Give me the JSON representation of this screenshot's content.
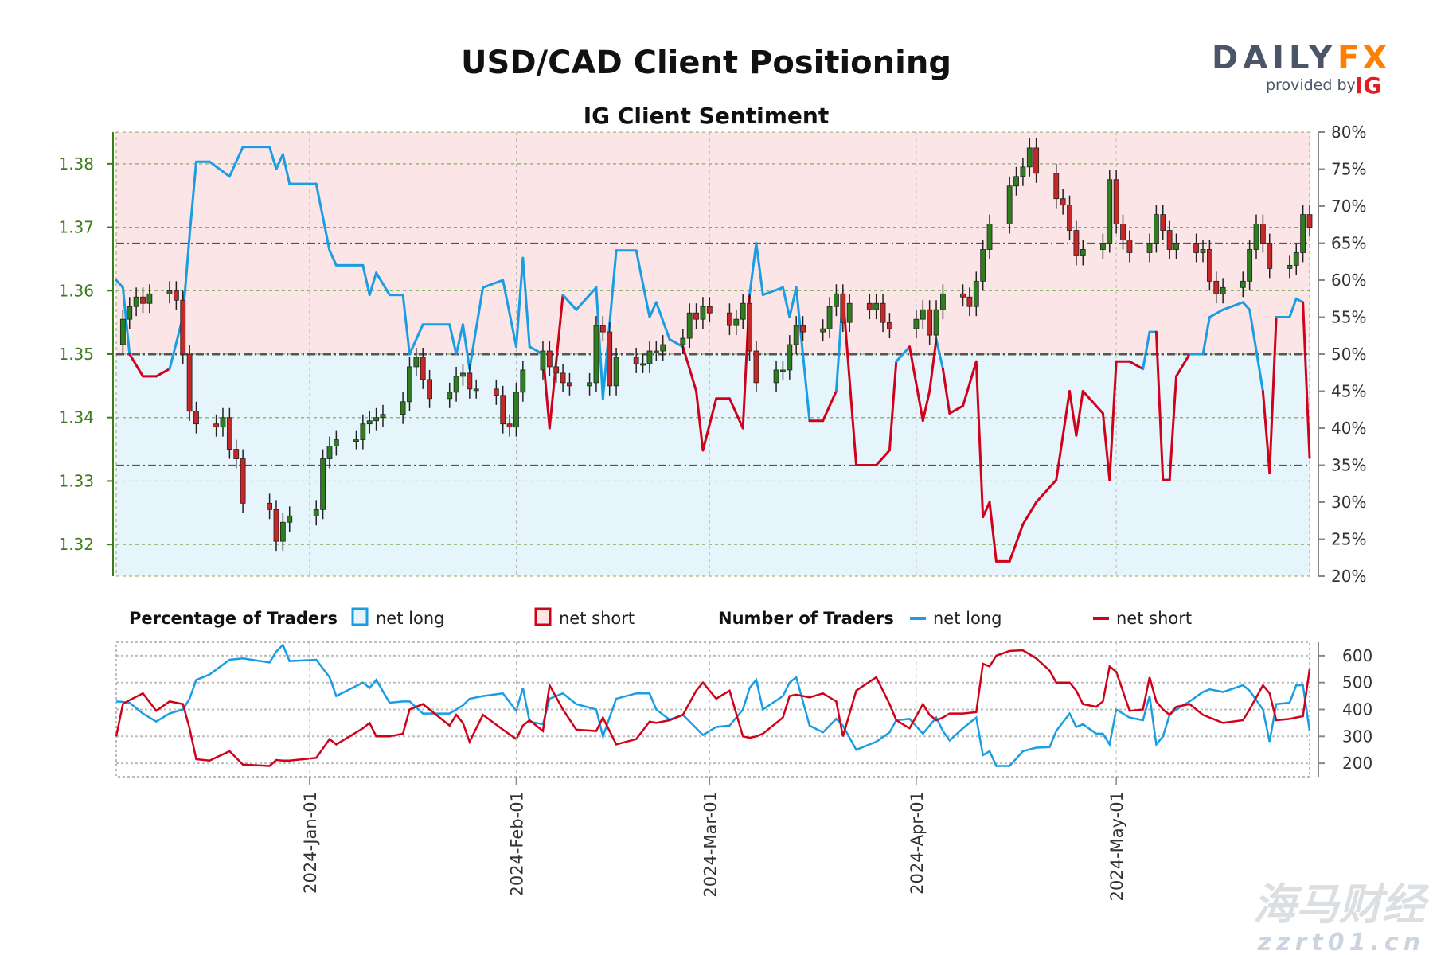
{
  "title": "USD/CAD Client Positioning",
  "subtitle": "IG Client Sentiment",
  "logo": {
    "brand_left": "DAILY",
    "brand_right": "FX",
    "provided_by": "provided by",
    "provider": "IG"
  },
  "watermark": {
    "line1": "海马财经",
    "line2": "zzrt01.cn"
  },
  "legend": {
    "percentage_title": "Percentage of Traders",
    "pct_long": "net long",
    "pct_short": "net short",
    "number_title": "Number of Traders",
    "num_long": "net long",
    "num_short": "net short"
  },
  "colors": {
    "long": "#1a9de3",
    "short": "#d0021b",
    "long_fill": "#e6f4fc",
    "short_fill": "#fbe5e6",
    "up_candle": "#2e7d1e",
    "down_candle": "#c62828",
    "price_axis": "#3a7d1a",
    "logo_grey": "#4a5568",
    "logo_orange": "#ff7f00",
    "logo_red": "#e31b23"
  },
  "chart_data": [
    {
      "type": "candlestick+line",
      "title": "IG Client Sentiment",
      "left_axis": {
        "ylim": [
          1.315,
          1.385
        ],
        "ticks": [
          "1.32",
          "1.33",
          "1.34",
          "1.35",
          "1.36",
          "1.37",
          "1.38"
        ]
      },
      "right_axis": {
        "ylim": [
          20,
          80
        ],
        "ticks": [
          "20%",
          "25%",
          "30%",
          "35%",
          "40%",
          "45%",
          "50%",
          "55%",
          "60%",
          "65%",
          "70%",
          "75%",
          "80%"
        ]
      },
      "x_ticks": [
        "2024-Jan-01",
        "2024-Feb-01",
        "2024-Mar-01",
        "2024-Apr-01",
        "2024-May-01"
      ],
      "x_range": [
        "2023-12-03",
        "2024-05-30"
      ],
      "reference_lines_pct": [
        35,
        50,
        65
      ],
      "price_close": [
        [
          "2023-12-04",
          1.3555
        ],
        [
          "2023-12-05",
          1.3575
        ],
        [
          "2023-12-06",
          1.359
        ],
        [
          "2023-12-07",
          1.358
        ],
        [
          "2023-12-08",
          1.3595
        ],
        [
          "2023-12-11",
          1.36
        ],
        [
          "2023-12-12",
          1.3585
        ],
        [
          "2023-12-13",
          1.35
        ],
        [
          "2023-12-14",
          1.341
        ],
        [
          "2023-12-15",
          1.339
        ],
        [
          "2023-12-18",
          1.3385
        ],
        [
          "2023-12-19",
          1.34
        ],
        [
          "2023-12-20",
          1.335
        ],
        [
          "2023-12-21",
          1.3335
        ],
        [
          "2023-12-22",
          1.3265
        ],
        [
          "2023-12-26",
          1.3255
        ],
        [
          "2023-12-27",
          1.3205
        ],
        [
          "2023-12-28",
          1.3235
        ],
        [
          "2023-12-29",
          1.3245
        ],
        [
          "2024-01-02",
          1.3255
        ],
        [
          "2024-01-03",
          1.3335
        ],
        [
          "2024-01-04",
          1.3355
        ],
        [
          "2024-01-05",
          1.3365
        ],
        [
          "2024-01-08",
          1.3365
        ],
        [
          "2024-01-09",
          1.339
        ],
        [
          "2024-01-10",
          1.3395
        ],
        [
          "2024-01-11",
          1.34
        ],
        [
          "2024-01-12",
          1.3405
        ],
        [
          "2024-01-15",
          1.3425
        ],
        [
          "2024-01-16",
          1.348
        ],
        [
          "2024-01-17",
          1.3495
        ],
        [
          "2024-01-18",
          1.346
        ],
        [
          "2024-01-19",
          1.343
        ],
        [
          "2024-01-22",
          1.344
        ],
        [
          "2024-01-23",
          1.3465
        ],
        [
          "2024-01-24",
          1.347
        ],
        [
          "2024-01-25",
          1.3445
        ],
        [
          "2024-01-26",
          1.3445
        ],
        [
          "2024-01-29",
          1.3435
        ],
        [
          "2024-01-30",
          1.339
        ],
        [
          "2024-01-31",
          1.3385
        ],
        [
          "2024-02-01",
          1.344
        ],
        [
          "2024-02-02",
          1.3475
        ],
        [
          "2024-02-05",
          1.3505
        ],
        [
          "2024-02-06",
          1.348
        ],
        [
          "2024-02-07",
          1.347
        ],
        [
          "2024-02-08",
          1.3455
        ],
        [
          "2024-02-09",
          1.345
        ],
        [
          "2024-02-12",
          1.3455
        ],
        [
          "2024-02-13",
          1.3545
        ],
        [
          "2024-02-14",
          1.3535
        ],
        [
          "2024-02-15",
          1.345
        ],
        [
          "2024-02-16",
          1.3495
        ],
        [
          "2024-02-19",
          1.3485
        ],
        [
          "2024-02-20",
          1.3485
        ],
        [
          "2024-02-21",
          1.3505
        ],
        [
          "2024-02-22",
          1.3505
        ],
        [
          "2024-02-23",
          1.3515
        ],
        [
          "2024-02-26",
          1.3525
        ],
        [
          "2024-02-27",
          1.3565
        ],
        [
          "2024-02-28",
          1.3555
        ],
        [
          "2024-02-29",
          1.3575
        ],
        [
          "2024-03-01",
          1.3565
        ],
        [
          "2024-03-04",
          1.3545
        ],
        [
          "2024-03-05",
          1.3555
        ],
        [
          "2024-03-06",
          1.358
        ],
        [
          "2024-03-07",
          1.3505
        ],
        [
          "2024-03-08",
          1.3455
        ],
        [
          "2024-03-11",
          1.3475
        ],
        [
          "2024-03-12",
          1.3475
        ],
        [
          "2024-03-13",
          1.3515
        ],
        [
          "2024-03-14",
          1.3545
        ],
        [
          "2024-03-15",
          1.3535
        ],
        [
          "2024-03-18",
          1.354
        ],
        [
          "2024-03-19",
          1.3575
        ],
        [
          "2024-03-20",
          1.3595
        ],
        [
          "2024-03-21",
          1.355
        ],
        [
          "2024-03-22",
          1.358
        ],
        [
          "2024-03-25",
          1.357
        ],
        [
          "2024-03-26",
          1.358
        ],
        [
          "2024-03-27",
          1.355
        ],
        [
          "2024-03-28",
          1.354
        ],
        [
          "2024-04-01",
          1.3555
        ],
        [
          "2024-04-02",
          1.357
        ],
        [
          "2024-04-03",
          1.353
        ],
        [
          "2024-04-04",
          1.357
        ],
        [
          "2024-04-05",
          1.3595
        ],
        [
          "2024-04-08",
          1.359
        ],
        [
          "2024-04-09",
          1.3575
        ],
        [
          "2024-04-10",
          1.3615
        ],
        [
          "2024-04-11",
          1.3665
        ],
        [
          "2024-04-12",
          1.3705
        ],
        [
          "2024-04-15",
          1.3765
        ],
        [
          "2024-04-16",
          1.378
        ],
        [
          "2024-04-17",
          1.3795
        ],
        [
          "2024-04-18",
          1.3825
        ],
        [
          "2024-04-19",
          1.3785
        ],
        [
          "2024-04-22",
          1.3745
        ],
        [
          "2024-04-23",
          1.3735
        ],
        [
          "2024-04-24",
          1.3695
        ],
        [
          "2024-04-25",
          1.3655
        ],
        [
          "2024-04-26",
          1.3665
        ],
        [
          "2024-04-29",
          1.3675
        ],
        [
          "2024-04-30",
          1.3775
        ],
        [
          "2024-05-01",
          1.3705
        ],
        [
          "2024-05-02",
          1.368
        ],
        [
          "2024-05-03",
          1.366
        ],
        [
          "2024-05-06",
          1.3675
        ],
        [
          "2024-05-07",
          1.372
        ],
        [
          "2024-05-08",
          1.3695
        ],
        [
          "2024-05-09",
          1.3665
        ],
        [
          "2024-05-10",
          1.3675
        ],
        [
          "2024-05-13",
          1.366
        ],
        [
          "2024-05-14",
          1.3665
        ],
        [
          "2024-05-15",
          1.3615
        ],
        [
          "2024-05-16",
          1.3595
        ],
        [
          "2024-05-17",
          1.3605
        ],
        [
          "2024-05-20",
          1.3615
        ],
        [
          "2024-05-21",
          1.3665
        ],
        [
          "2024-05-22",
          1.3705
        ],
        [
          "2024-05-23",
          1.3675
        ],
        [
          "2024-05-24",
          1.3635
        ],
        [
          "2024-05-27",
          1.364
        ],
        [
          "2024-05-28",
          1.366
        ],
        [
          "2024-05-29",
          1.372
        ],
        [
          "2024-05-30",
          1.37
        ]
      ]
    },
    {
      "type": "line",
      "right_axis": {
        "ylim": [
          150,
          650
        ],
        "ticks": [
          "200",
          "300",
          "400",
          "500",
          "600"
        ]
      },
      "columns": [
        "date",
        "net_long_pct",
        "net_long_traders",
        "net_short_traders"
      ],
      "rows": [
        [
          "2023-12-03",
          60,
          430,
          300
        ],
        [
          "2023-12-04",
          59,
          428,
          420
        ],
        [
          "2023-12-05",
          50,
          425,
          435
        ],
        [
          "2023-12-07",
          47,
          385,
          460
        ],
        [
          "2023-12-09",
          47,
          355,
          395
        ],
        [
          "2023-12-11",
          48,
          385,
          430
        ],
        [
          "2023-12-13",
          55,
          400,
          420
        ],
        [
          "2023-12-14",
          66,
          440,
          330
        ],
        [
          "2023-12-15",
          76,
          510,
          215
        ],
        [
          "2023-12-17",
          76,
          530,
          210
        ],
        [
          "2023-12-20",
          74,
          585,
          245
        ],
        [
          "2023-12-22",
          78,
          590,
          195
        ],
        [
          "2023-12-26",
          78,
          575,
          190
        ],
        [
          "2023-12-27",
          75,
          615,
          212
        ],
        [
          "2023-12-28",
          77,
          640,
          210
        ],
        [
          "2023-12-29",
          73,
          580,
          210
        ],
        [
          "2024-01-02",
          73,
          585,
          220
        ],
        [
          "2024-01-04",
          64,
          520,
          290
        ],
        [
          "2024-01-05",
          62,
          450,
          270
        ],
        [
          "2024-01-09",
          62,
          500,
          330
        ],
        [
          "2024-01-10",
          58,
          480,
          350
        ],
        [
          "2024-01-11",
          61,
          510,
          300
        ],
        [
          "2024-01-13",
          58,
          425,
          300
        ],
        [
          "2024-01-15",
          58,
          430,
          310
        ],
        [
          "2024-01-16",
          50,
          430,
          400
        ],
        [
          "2024-01-18",
          54,
          385,
          420
        ],
        [
          "2024-01-22",
          54,
          385,
          340
        ],
        [
          "2024-01-23",
          50,
          400,
          380
        ],
        [
          "2024-01-24",
          54,
          415,
          350
        ],
        [
          "2024-01-25",
          48,
          440,
          280
        ],
        [
          "2024-01-27",
          59,
          450,
          380
        ],
        [
          "2024-01-30",
          60,
          460,
          325
        ],
        [
          "2024-02-01",
          51,
          395,
          290
        ],
        [
          "2024-02-02",
          63,
          480,
          340
        ],
        [
          "2024-02-03",
          51,
          355,
          360
        ],
        [
          "2024-02-05",
          50,
          345,
          320
        ],
        [
          "2024-02-06",
          40,
          440,
          490
        ],
        [
          "2024-02-08",
          58,
          460,
          400
        ],
        [
          "2024-02-10",
          56,
          420,
          325
        ],
        [
          "2024-02-13",
          59,
          400,
          320
        ],
        [
          "2024-02-14",
          44,
          300,
          370
        ],
        [
          "2024-02-16",
          64,
          440,
          270
        ],
        [
          "2024-02-19",
          64,
          460,
          290
        ],
        [
          "2024-02-21",
          55,
          460,
          355
        ],
        [
          "2024-02-22",
          57,
          400,
          350
        ],
        [
          "2024-02-24",
          52,
          362,
          360
        ],
        [
          "2024-02-26",
          51,
          380,
          380
        ],
        [
          "2024-02-28",
          45,
          330,
          470
        ],
        [
          "2024-02-29",
          37,
          305,
          500
        ],
        [
          "2024-03-02",
          44,
          335,
          440
        ],
        [
          "2024-03-04",
          44,
          340,
          470
        ],
        [
          "2024-03-06",
          40,
          400,
          300
        ],
        [
          "2024-03-07",
          58,
          480,
          295
        ],
        [
          "2024-03-08",
          65,
          510,
          300
        ],
        [
          "2024-03-09",
          58,
          400,
          310
        ],
        [
          "2024-03-12",
          59,
          450,
          370
        ],
        [
          "2024-03-13",
          55,
          500,
          450
        ],
        [
          "2024-03-14",
          59,
          520,
          455
        ],
        [
          "2024-03-16",
          41,
          340,
          445
        ],
        [
          "2024-03-18",
          41,
          315,
          460
        ],
        [
          "2024-03-20",
          45,
          365,
          430
        ],
        [
          "2024-03-21",
          58,
          340,
          300
        ],
        [
          "2024-03-23",
          35,
          250,
          470
        ],
        [
          "2024-03-26",
          35,
          280,
          520
        ],
        [
          "2024-03-28",
          37,
          315,
          420
        ],
        [
          "2024-03-29",
          49,
          360,
          360
        ],
        [
          "2024-03-31",
          51,
          365,
          330
        ],
        [
          "2024-04-02",
          41,
          310,
          420
        ],
        [
          "2024-04-03",
          45,
          340,
          380
        ],
        [
          "2024-04-04",
          52,
          370,
          360
        ],
        [
          "2024-04-05",
          48,
          320,
          370
        ],
        [
          "2024-04-06",
          42,
          285,
          385
        ],
        [
          "2024-04-08",
          43,
          330,
          385
        ],
        [
          "2024-04-10",
          49,
          370,
          390
        ],
        [
          "2024-04-11",
          28,
          230,
          570
        ],
        [
          "2024-04-12",
          30,
          245,
          560
        ],
        [
          "2024-04-13",
          22,
          190,
          600
        ],
        [
          "2024-04-15",
          22,
          190,
          618
        ],
        [
          "2024-04-17",
          27,
          245,
          620
        ],
        [
          "2024-04-19",
          30,
          258,
          590
        ],
        [
          "2024-04-21",
          32,
          260,
          545
        ],
        [
          "2024-04-22",
          33,
          320,
          500
        ],
        [
          "2024-04-24",
          45,
          385,
          500
        ],
        [
          "2024-04-25",
          39,
          335,
          470
        ],
        [
          "2024-04-26",
          45,
          345,
          420
        ],
        [
          "2024-04-28",
          43,
          310,
          410
        ],
        [
          "2024-04-29",
          42,
          310,
          430
        ],
        [
          "2024-04-30",
          33,
          270,
          560
        ],
        [
          "2024-05-01",
          49,
          400,
          540
        ],
        [
          "2024-05-03",
          49,
          370,
          395
        ],
        [
          "2024-05-05",
          48,
          360,
          400
        ],
        [
          "2024-05-06",
          53,
          450,
          520
        ],
        [
          "2024-05-07",
          53,
          270,
          430
        ],
        [
          "2024-05-08",
          33,
          300,
          400
        ],
        [
          "2024-05-09",
          33,
          380,
          380
        ],
        [
          "2024-05-10",
          47,
          400,
          410
        ],
        [
          "2024-05-12",
          50,
          430,
          420
        ],
        [
          "2024-05-14",
          50,
          465,
          380
        ],
        [
          "2024-05-15",
          55,
          475,
          370
        ],
        [
          "2024-05-17",
          56,
          465,
          350
        ],
        [
          "2024-05-20",
          57,
          490,
          360
        ],
        [
          "2024-05-21",
          56,
          470,
          400
        ],
        [
          "2024-05-23",
          45,
          400,
          490
        ],
        [
          "2024-05-24",
          34,
          280,
          460
        ],
        [
          "2024-05-25",
          55,
          420,
          360
        ],
        [
          "2024-05-27",
          55,
          425,
          365
        ],
        [
          "2024-05-28",
          57.5,
          490,
          370
        ],
        [
          "2024-05-29",
          57,
          490,
          375
        ],
        [
          "2024-05-30",
          36,
          320,
          550
        ]
      ]
    }
  ]
}
